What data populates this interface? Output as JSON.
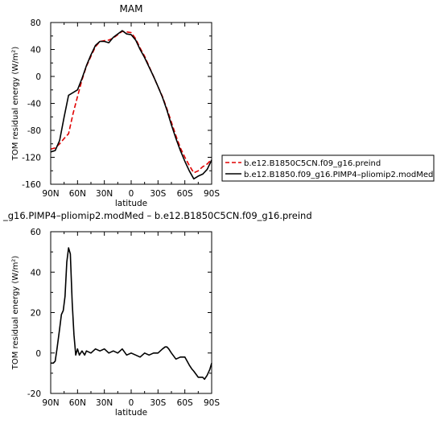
{
  "chart_data": [
    {
      "type": "line",
      "title": "MAM",
      "xlabel": "latitude",
      "ylabel": "TOM residual energy (W/m²)",
      "xticks": [
        "90N",
        "60N",
        "30N",
        "0",
        "30S",
        "60S",
        "90S"
      ],
      "xlim": [
        90,
        -90
      ],
      "ylim": [
        -160,
        80
      ],
      "yticks": [
        -160,
        -120,
        -80,
        -40,
        0,
        40,
        80
      ],
      "legend_position": "right",
      "series": [
        {
          "name": "b.e12.B1850C5CN.f09_g16.preind",
          "color": "#e00000",
          "dash": true,
          "x": [
            90,
            85,
            80,
            75,
            70,
            65,
            60,
            55,
            50,
            45,
            40,
            35,
            30,
            25,
            20,
            15,
            10,
            5,
            0,
            -5,
            -10,
            -15,
            -20,
            -25,
            -30,
            -35,
            -40,
            -45,
            -50,
            -55,
            -60,
            -65,
            -70,
            -75,
            -80,
            -85,
            -90
          ],
          "y": [
            -108,
            -106,
            -100,
            -92,
            -85,
            -55,
            -30,
            -5,
            15,
            30,
            44,
            52,
            53,
            54,
            57,
            62,
            67,
            66,
            65,
            56,
            42,
            30,
            15,
            0,
            -15,
            -30,
            -48,
            -68,
            -88,
            -106,
            -120,
            -132,
            -143,
            -140,
            -134,
            -130,
            -123
          ]
        },
        {
          "name": "b.e12.B1850.f09_g16.PIMP4–pliomip2.modMed",
          "color": "#000000",
          "dash": false,
          "x": [
            90,
            85,
            80,
            75,
            70,
            65,
            60,
            55,
            50,
            45,
            40,
            35,
            30,
            25,
            20,
            15,
            10,
            5,
            0,
            -5,
            -10,
            -15,
            -20,
            -25,
            -30,
            -35,
            -40,
            -45,
            -50,
            -55,
            -60,
            -65,
            -70,
            -75,
            -80,
            -85,
            -90
          ],
          "y": [
            -112,
            -110,
            -95,
            -60,
            -28,
            -24,
            -20,
            -3,
            16,
            32,
            46,
            52,
            52,
            50,
            58,
            63,
            68,
            63,
            62,
            54,
            40,
            28,
            14,
            0,
            -15,
            -31,
            -50,
            -72,
            -92,
            -110,
            -126,
            -140,
            -152,
            -148,
            -145,
            -138,
            -124
          ]
        }
      ]
    },
    {
      "type": "line",
      "title": "_g16.PIMP4–pliomip2.modMed – b.e12.B1850C5CN.f09_g16.preind",
      "xlabel": "latitude",
      "ylabel": "TOM residual energy (W/m²)",
      "xticks": [
        "90N",
        "60N",
        "30N",
        "0",
        "30S",
        "60S",
        "90S"
      ],
      "xlim": [
        90,
        -90
      ],
      "ylim": [
        -20,
        60
      ],
      "yticks": [
        -20,
        0,
        20,
        40,
        60
      ],
      "series": [
        {
          "color": "#000000",
          "x": [
            90,
            87,
            85,
            83,
            80,
            78,
            76,
            74,
            72,
            70,
            68,
            66,
            64,
            62,
            60,
            58,
            55,
            52,
            50,
            45,
            40,
            35,
            30,
            25,
            20,
            15,
            10,
            5,
            0,
            -5,
            -10,
            -15,
            -20,
            -25,
            -30,
            -35,
            -38,
            -40,
            -42,
            -45,
            -50,
            -55,
            -60,
            -65,
            -68,
            -70,
            -75,
            -80,
            -82,
            -85,
            -88,
            -90
          ],
          "y": [
            -5,
            -5,
            -4,
            2,
            12,
            19,
            21,
            28,
            45,
            52,
            49,
            25,
            9,
            -1,
            2,
            -1,
            1,
            -1,
            1,
            0,
            2,
            1,
            2,
            0,
            1,
            0,
            2,
            -1,
            0,
            -1,
            -2,
            0,
            -1,
            0,
            0,
            2,
            3,
            3,
            2,
            0,
            -3,
            -2,
            -2,
            -6,
            -8,
            -9,
            -12,
            -12,
            -13,
            -11,
            -8,
            -5
          ]
        }
      ]
    }
  ]
}
